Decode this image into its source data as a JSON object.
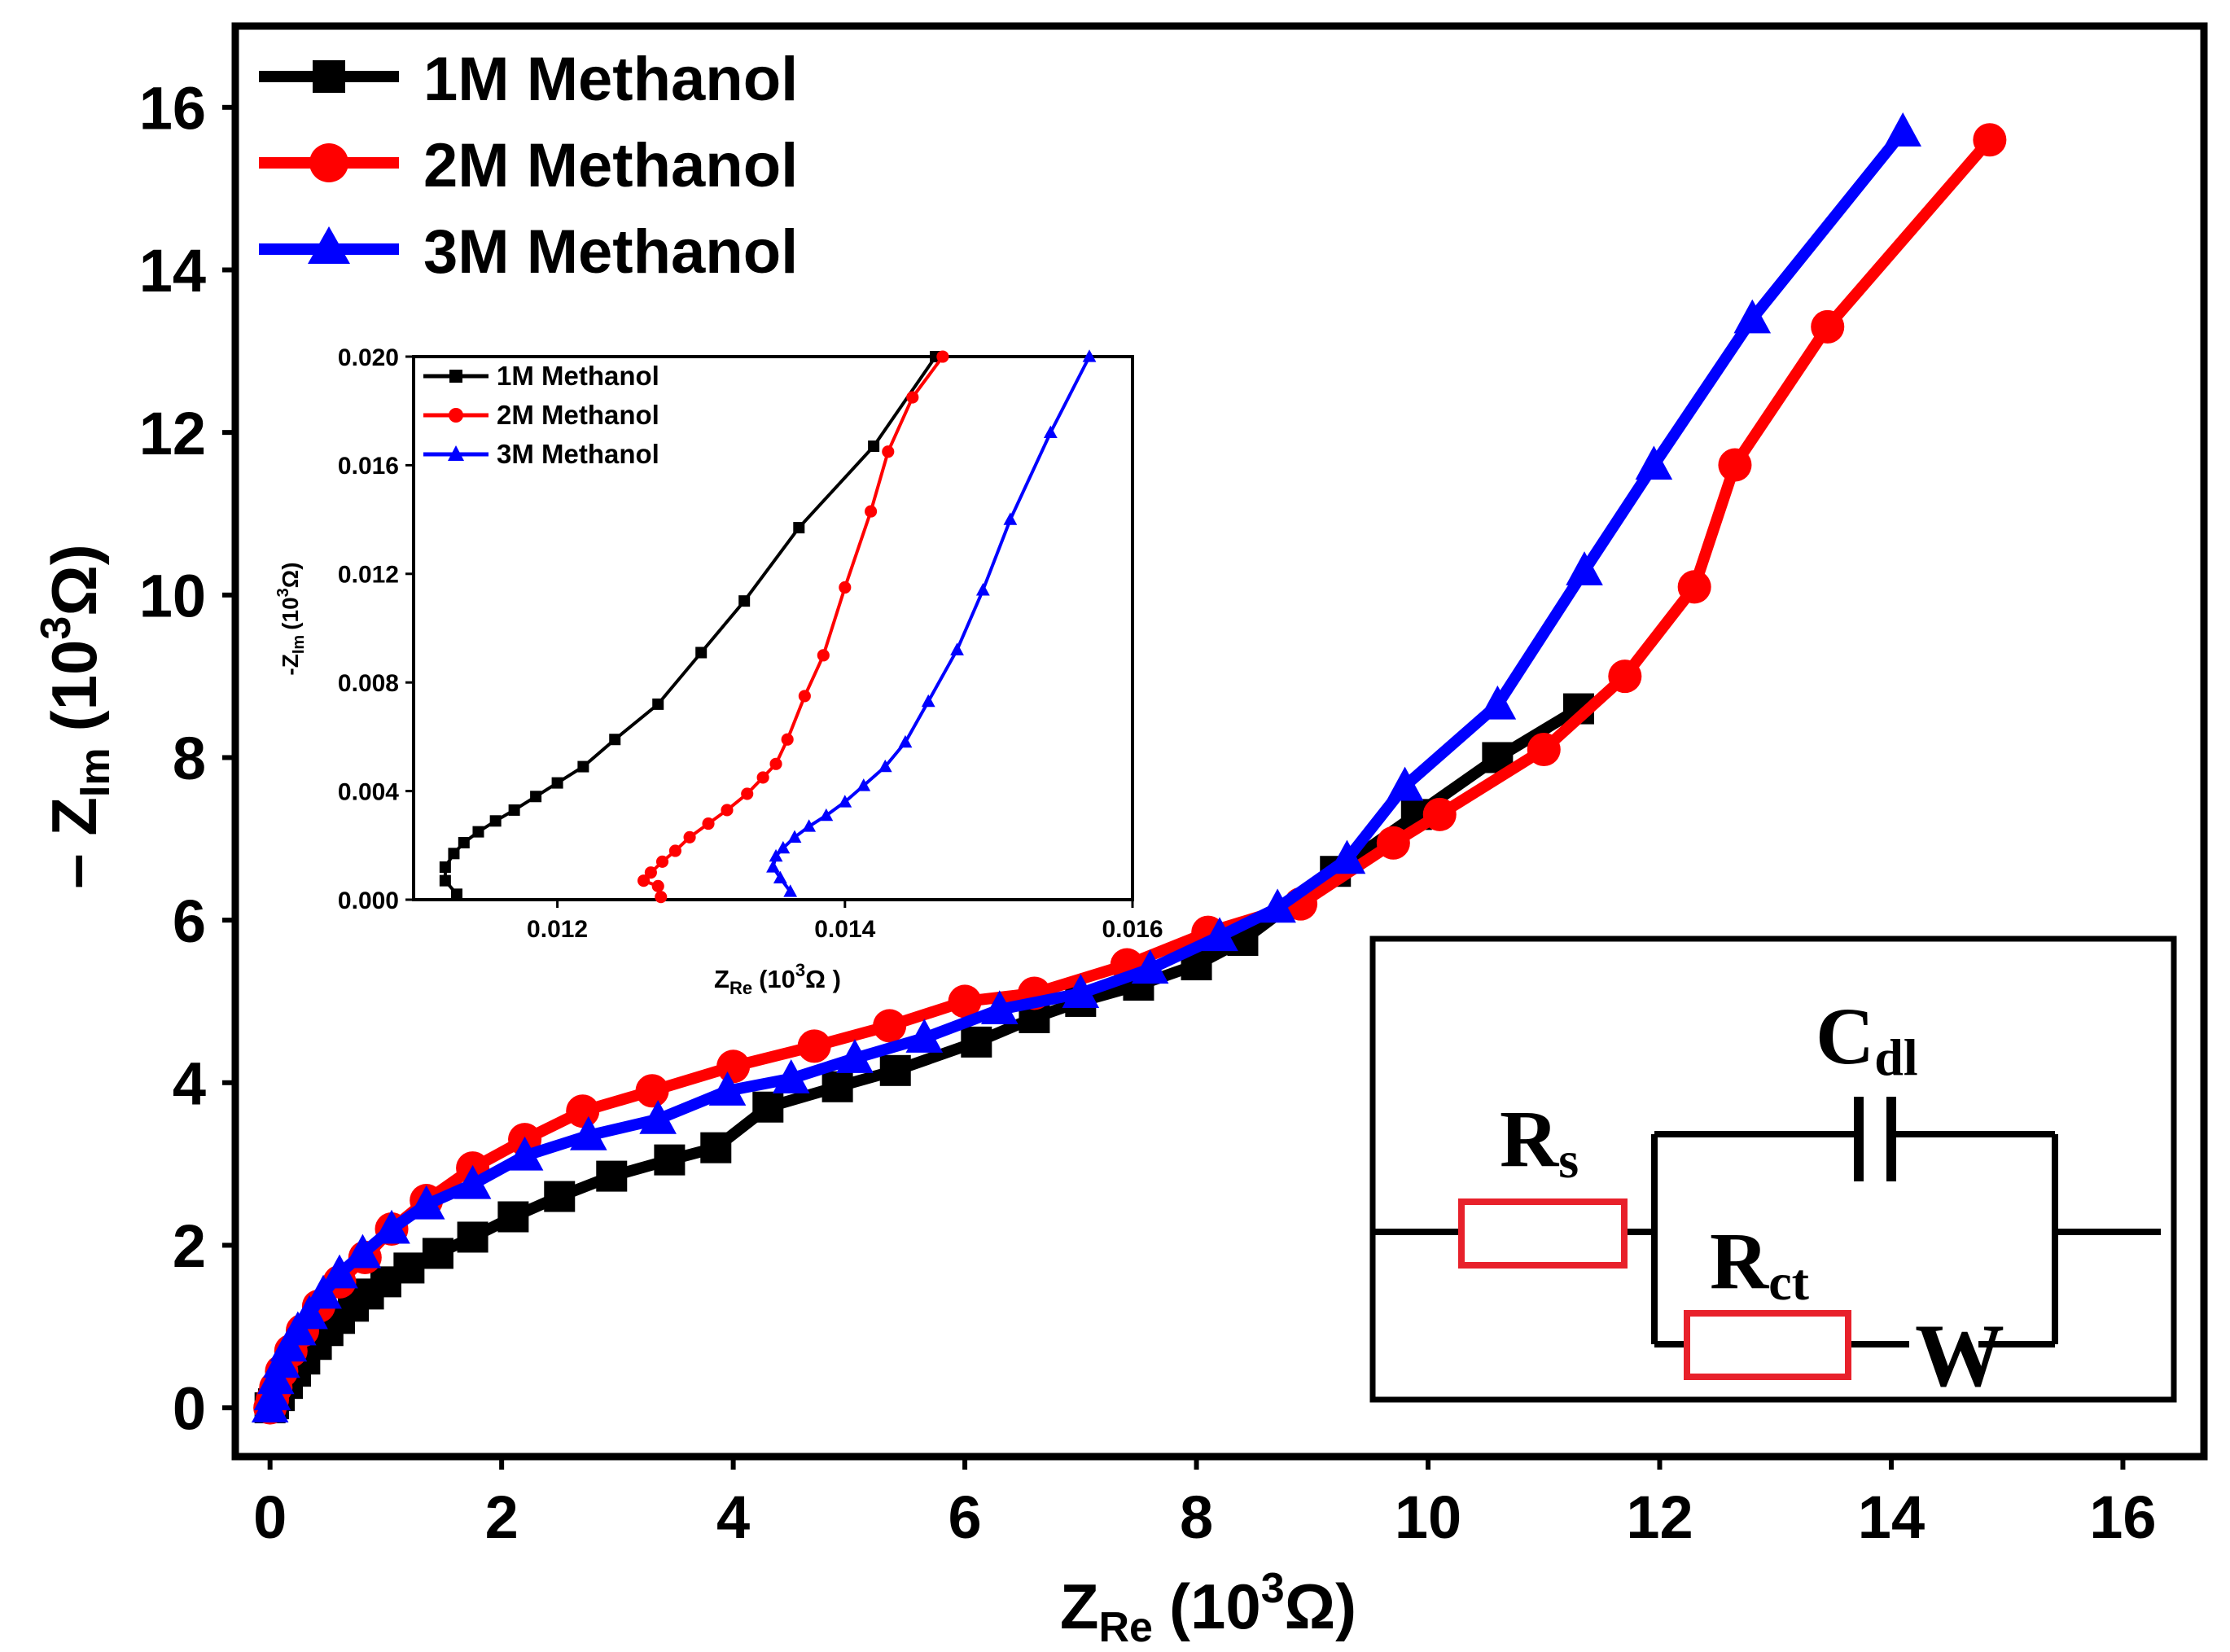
{
  "chart_data": [
    {
      "type": "line",
      "title": "",
      "xlabel": {
        "main": "Z",
        "sub": "Re",
        "unit_pre": "(10",
        "sup": "3",
        "unit_post": "Ω)"
      },
      "ylabel": {
        "main": "– Z",
        "sub": "Im",
        "unit_pre": "(10",
        "sup": "3",
        "unit_post": "Ω)"
      },
      "xlim": [
        -0.3,
        16.7
      ],
      "ylim": [
        -0.6,
        17
      ],
      "xticks": [
        "0",
        "2",
        "4",
        "6",
        "8",
        "10",
        "12",
        "14",
        "16"
      ],
      "yticks": [
        "0",
        "2",
        "4",
        "6",
        "8",
        "10",
        "12",
        "14",
        "16"
      ],
      "legend_position": "top-left",
      "series": [
        {
          "name": "1M Methanol",
          "color": "#000000",
          "marker": "square",
          "x": [
            0.0,
            0.03,
            0.08,
            0.15,
            0.22,
            0.3,
            0.4,
            0.5,
            0.6,
            0.72,
            0.85,
            1.0,
            1.2,
            1.45,
            1.75,
            2.1,
            2.5,
            2.95,
            3.45,
            3.85,
            4.3,
            4.9,
            5.4,
            6.1,
            6.6,
            7.0,
            7.5,
            8.0,
            8.4,
            9.2,
            9.9,
            10.6,
            11.3
          ],
          "y": [
            0.0,
            0.05,
            0.15,
            0.3,
            0.45,
            0.6,
            0.78,
            0.95,
            1.1,
            1.25,
            1.4,
            1.55,
            1.72,
            1.9,
            2.1,
            2.35,
            2.6,
            2.85,
            3.05,
            3.2,
            3.7,
            3.95,
            4.15,
            4.5,
            4.8,
            5.0,
            5.2,
            5.45,
            5.75,
            6.6,
            7.3,
            8.0,
            8.6
          ]
        },
        {
          "name": "2M Methanol",
          "color": "#ff0000",
          "marker": "circle",
          "x": [
            0.0,
            0.02,
            0.05,
            0.1,
            0.18,
            0.28,
            0.42,
            0.6,
            0.82,
            1.05,
            1.35,
            1.75,
            2.2,
            2.7,
            3.3,
            4.0,
            4.7,
            5.35,
            6.0,
            6.6,
            7.4,
            8.1,
            8.9,
            9.7,
            10.1,
            11.0,
            11.7,
            12.3,
            12.65,
            13.45,
            14.85
          ],
          "y": [
            0.0,
            0.1,
            0.25,
            0.45,
            0.7,
            0.95,
            1.25,
            1.55,
            1.85,
            2.2,
            2.55,
            2.95,
            3.3,
            3.65,
            3.9,
            4.2,
            4.45,
            4.7,
            5.0,
            5.1,
            5.45,
            5.85,
            6.2,
            6.95,
            7.3,
            8.1,
            9.0,
            10.1,
            11.6,
            13.3,
            15.6
          ]
        },
        {
          "name": "3M Methanol",
          "color": "#0000ff",
          "marker": "triangle",
          "x": [
            0.0,
            0.02,
            0.05,
            0.1,
            0.16,
            0.24,
            0.34,
            0.46,
            0.6,
            0.8,
            1.05,
            1.35,
            1.75,
            2.2,
            2.75,
            3.35,
            3.95,
            4.5,
            5.05,
            5.65,
            6.3,
            7.0,
            7.6,
            8.2,
            8.7,
            9.3,
            9.8,
            10.6,
            11.35,
            11.95,
            12.8,
            14.1
          ],
          "y": [
            0.0,
            0.15,
            0.35,
            0.55,
            0.75,
            0.95,
            1.15,
            1.4,
            1.65,
            1.9,
            2.2,
            2.5,
            2.75,
            3.1,
            3.35,
            3.55,
            3.9,
            4.05,
            4.3,
            4.55,
            4.9,
            5.1,
            5.4,
            5.8,
            6.15,
            6.75,
            7.65,
            8.65,
            10.3,
            11.6,
            13.4,
            15.7
          ]
        }
      ]
    },
    {
      "type": "line",
      "title": "",
      "xlabel": {
        "main": "Z",
        "sub": "Re",
        "unit_pre": "(10",
        "sup": "3",
        "unit_post": "Ω )"
      },
      "ylabel": {
        "main": "-Z",
        "sub": "Im",
        "unit_pre": "(10",
        "sup": "3",
        "unit_post": "Ω)"
      },
      "xlim": [
        0.011,
        0.016
      ],
      "ylim": [
        0.0,
        0.02
      ],
      "xticks": [
        "0.012",
        "0.014",
        "0.016"
      ],
      "yticks": [
        "0.000",
        "0.004",
        "0.008",
        "0.012",
        "0.016",
        "0.020"
      ],
      "legend_position": "top-left",
      "series": [
        {
          "name": "1M Methanol",
          "color": "#000000",
          "marker": "square",
          "x": [
            0.0113,
            0.01122,
            0.01122,
            0.01128,
            0.01135,
            0.01145,
            0.01157,
            0.0117,
            0.01185,
            0.012,
            0.01218,
            0.0124,
            0.0127,
            0.013,
            0.0133,
            0.01368,
            0.0142,
            0.01463
          ],
          "y": [
            0.0002,
            0.0007,
            0.0012,
            0.0017,
            0.0021,
            0.0025,
            0.0029,
            0.0033,
            0.0038,
            0.0043,
            0.0049,
            0.0059,
            0.0072,
            0.0091,
            0.011,
            0.0137,
            0.0167,
            0.02
          ]
        },
        {
          "name": "2M Methanol",
          "color": "#ff0000",
          "marker": "circle",
          "x": [
            0.01272,
            0.0127,
            0.0126,
            0.01265,
            0.01273,
            0.01282,
            0.01292,
            0.01305,
            0.01318,
            0.01332,
            0.01343,
            0.01352,
            0.0136,
            0.01372,
            0.01385,
            0.014,
            0.01418,
            0.0143,
            0.01447,
            0.01468
          ],
          "y": [
            0.0001,
            0.0005,
            0.0007,
            0.001,
            0.0014,
            0.0018,
            0.0023,
            0.0028,
            0.0033,
            0.0039,
            0.0045,
            0.005,
            0.0059,
            0.0075,
            0.009,
            0.0115,
            0.0143,
            0.0165,
            0.0185,
            0.02
          ]
        },
        {
          "name": "3M Methanol",
          "color": "#0000ff",
          "marker": "triangle",
          "x": [
            0.01362,
            0.01355,
            0.0135,
            0.01352,
            0.01357,
            0.01365,
            0.01375,
            0.01387,
            0.014,
            0.01413,
            0.01428,
            0.01442,
            0.01458,
            0.01478,
            0.01496,
            0.01515,
            0.01543,
            0.0157
          ],
          "y": [
            0.0003,
            0.0008,
            0.0012,
            0.0016,
            0.0019,
            0.0023,
            0.0027,
            0.0031,
            0.0036,
            0.0042,
            0.0049,
            0.0058,
            0.0073,
            0.0092,
            0.0114,
            0.014,
            0.0172,
            0.02
          ]
        }
      ]
    }
  ],
  "circuit": {
    "rs": {
      "main": "R",
      "sub": "s"
    },
    "cdl": {
      "main": "C",
      "sub": "dl"
    },
    "rct": {
      "main": "R",
      "sub": "ct"
    },
    "w": "W",
    "wire_color": "#000000",
    "resistor_color": "#e8212b"
  }
}
